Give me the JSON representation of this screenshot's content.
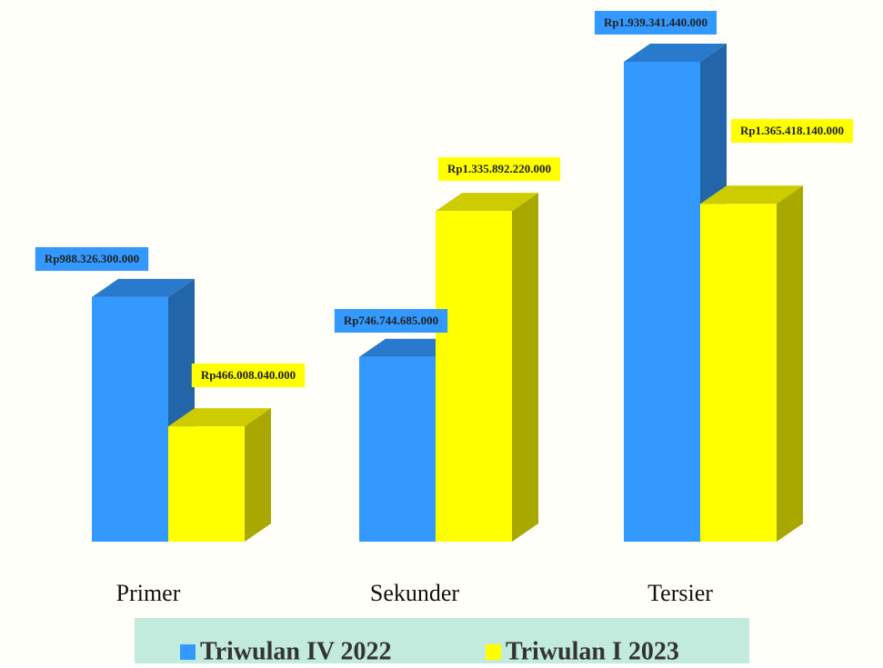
{
  "chart_data": {
    "type": "bar3d",
    "categories": [
      "Primer",
      "Sekunder",
      "Tersier"
    ],
    "series": [
      {
        "name": "Triwulan IV 2022",
        "color": "#3399ff",
        "values": [
          988326300000,
          746744685000,
          1939341440000
        ],
        "value_labels": [
          "Rp988.326.300.000",
          "Rp746.744.685.000",
          "Rp1.939.341.440.000"
        ]
      },
      {
        "name": "Triwulan I 2023",
        "color": "#ffff00",
        "values": [
          466008040000,
          1335892220000,
          1365418140000
        ],
        "value_labels": [
          "Rp466.008.040.000",
          "Rp1.335.892.220.000",
          "Rp1.365.418.140.000"
        ]
      }
    ]
  }
}
